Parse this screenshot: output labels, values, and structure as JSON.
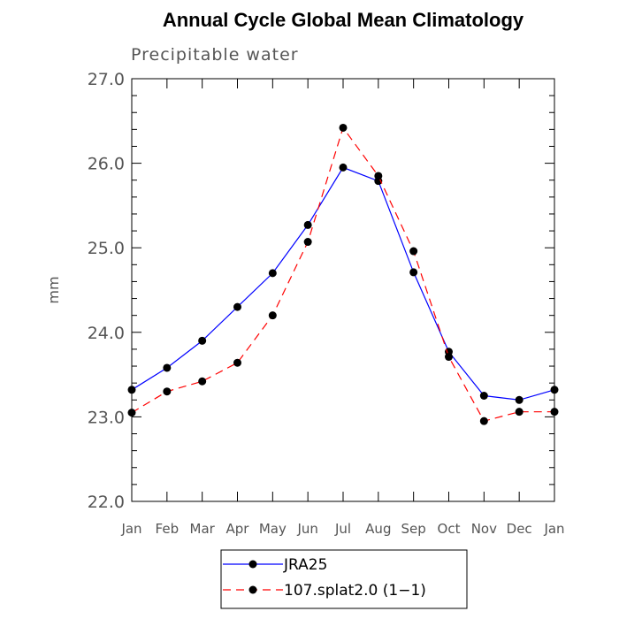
{
  "chart_data": {
    "type": "line",
    "title": "Annual Cycle Global Mean Climatology",
    "subtitle": "Precipitable water",
    "ylabel": "mm",
    "xlabel": "",
    "ylim": [
      22.0,
      27.0
    ],
    "yticks": [
      "22.0",
      "23.0",
      "24.0",
      "25.0",
      "26.0",
      "27.0"
    ],
    "ytick_values": [
      22,
      23,
      24,
      25,
      26,
      27
    ],
    "categories": [
      "Jan",
      "Feb",
      "Mar",
      "Apr",
      "May",
      "Jun",
      "Jul",
      "Aug",
      "Sep",
      "Oct",
      "Nov",
      "Dec",
      "Jan"
    ],
    "series": [
      {
        "name": "JRA25",
        "color": "#0000ff",
        "dash": "solid",
        "values": [
          23.32,
          23.58,
          23.9,
          24.3,
          24.7,
          25.27,
          25.95,
          25.79,
          24.71,
          23.77,
          23.25,
          23.2,
          23.32
        ]
      },
      {
        "name": "107.splat2.0 (1−1)",
        "color": "#ff0000",
        "dash": "dashed",
        "values": [
          23.05,
          23.3,
          23.42,
          23.64,
          24.2,
          25.07,
          26.42,
          25.85,
          24.96,
          23.71,
          22.95,
          23.06,
          23.06
        ]
      }
    ],
    "legend_position": "bottom-center"
  }
}
